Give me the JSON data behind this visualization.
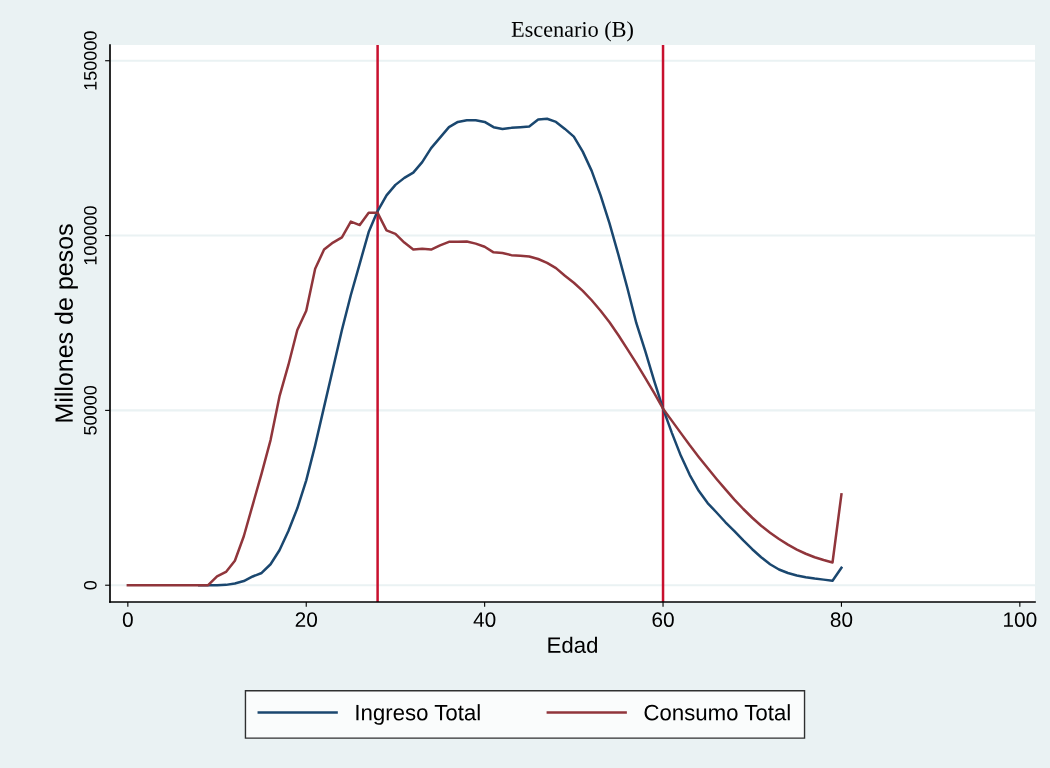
{
  "chart_data": {
    "type": "line",
    "title": "Escenario (B)",
    "xlabel": "Edad",
    "ylabel": "Millones de pesos",
    "x": [
      0,
      1,
      2,
      3,
      4,
      5,
      6,
      7,
      8,
      9,
      10,
      11,
      12,
      13,
      14,
      15,
      16,
      17,
      18,
      19,
      20,
      21,
      22,
      23,
      24,
      25,
      26,
      27,
      28,
      29,
      30,
      31,
      32,
      33,
      34,
      35,
      36,
      37,
      38,
      39,
      40,
      41,
      42,
      43,
      44,
      45,
      46,
      47,
      48,
      49,
      50,
      51,
      52,
      53,
      54,
      55,
      56,
      57,
      58,
      59,
      60,
      61,
      62,
      63,
      64,
      65,
      66,
      67,
      68,
      69,
      70,
      71,
      72,
      73,
      74,
      75,
      76,
      77,
      78,
      79,
      80
    ],
    "series": [
      {
        "name": "Ingreso Total",
        "color": "#1a476f",
        "values": [
          null,
          null,
          null,
          null,
          null,
          null,
          null,
          null,
          0,
          0,
          0,
          100,
          500,
          1200,
          2500,
          3500,
          6000,
          10000,
          15500,
          22000,
          30000,
          40000,
          51000,
          62000,
          73000,
          83000,
          92000,
          101000,
          107000,
          111500,
          114500,
          116500,
          118000,
          121000,
          125000,
          128000,
          131000,
          132500,
          133000,
          133000,
          132500,
          131000,
          130500,
          130800,
          131000,
          131200,
          133200,
          133400,
          132500,
          130500,
          128300,
          124000,
          118500,
          111500,
          103500,
          94500,
          85000,
          75000,
          67000,
          58500,
          50500,
          43500,
          37000,
          31500,
          27000,
          23500,
          20800,
          18000,
          15500,
          12800,
          10300,
          8000,
          6000,
          4500,
          3500,
          2800,
          2300,
          1900,
          1600,
          1300,
          5000
        ]
      },
      {
        "name": "Consumo Total",
        "color": "#90353b",
        "values": [
          0,
          0,
          0,
          0,
          0,
          0,
          0,
          0,
          0,
          0,
          2500,
          3800,
          7000,
          14000,
          23000,
          32000,
          41500,
          54000,
          63000,
          73000,
          78500,
          90500,
          96000,
          98000,
          99500,
          104000,
          103000,
          106500,
          106500,
          101500,
          100500,
          98000,
          96000,
          96200,
          96000,
          97200,
          98200,
          98200,
          98300,
          97700,
          96800,
          95200,
          95000,
          94400,
          94200,
          94000,
          93300,
          92200,
          90700,
          88500,
          86500,
          84200,
          81500,
          78500,
          75200,
          71500,
          67500,
          63500,
          59300,
          55000,
          50500,
          47000,
          43500,
          40000,
          36700,
          33500,
          30400,
          27400,
          24500,
          21800,
          19300,
          17000,
          15000,
          13200,
          11600,
          10200,
          9000,
          8000,
          7200,
          6500,
          26000
        ]
      }
    ],
    "xlim": [
      -2,
      101.7
    ],
    "ylim": [
      -4800,
      154500
    ],
    "xticks": [
      0,
      20,
      40,
      60,
      80,
      100
    ],
    "yticks": [
      0,
      50000,
      100000,
      150000
    ],
    "ref_lines": [
      {
        "axis": "x",
        "value": 28,
        "color": "#c8102e"
      },
      {
        "axis": "x",
        "value": 60,
        "color": "#c8102e"
      }
    ],
    "grid": "y",
    "legend": "bottom",
    "marker": "none",
    "line_style": "solid"
  }
}
